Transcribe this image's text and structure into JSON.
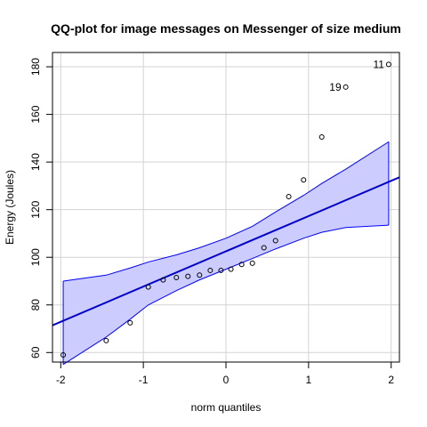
{
  "chart_data": {
    "type": "scatter",
    "title": "QQ-plot for image messages on Messenger of size medium",
    "xlabel": "norm quantiles",
    "ylabel": "Energy (Joules)",
    "xlim": [
      -2.1,
      2.1
    ],
    "ylim": [
      56,
      186
    ],
    "xticks": [
      -2,
      -1,
      0,
      1,
      2
    ],
    "yticks": [
      60,
      80,
      100,
      120,
      140,
      160,
      180
    ],
    "grid": true,
    "points": [
      {
        "x": -1.97,
        "y": 59.0
      },
      {
        "x": -1.45,
        "y": 65.0
      },
      {
        "x": -1.16,
        "y": 72.5
      },
      {
        "x": -0.94,
        "y": 87.5
      },
      {
        "x": -0.76,
        "y": 90.5
      },
      {
        "x": -0.6,
        "y": 91.5
      },
      {
        "x": -0.46,
        "y": 92.0
      },
      {
        "x": -0.32,
        "y": 92.5
      },
      {
        "x": -0.19,
        "y": 94.5
      },
      {
        "x": -0.06,
        "y": 94.5
      },
      {
        "x": 0.06,
        "y": 95.0
      },
      {
        "x": 0.19,
        "y": 97.0
      },
      {
        "x": 0.32,
        "y": 97.5
      },
      {
        "x": 0.46,
        "y": 104.0
      },
      {
        "x": 0.6,
        "y": 107.0
      },
      {
        "x": 0.76,
        "y": 125.5
      },
      {
        "x": 0.94,
        "y": 132.5
      },
      {
        "x": 1.16,
        "y": 150.5
      },
      {
        "x": 1.45,
        "y": 171.5
      },
      {
        "x": 1.97,
        "y": 181.0
      }
    ],
    "point_labels": [
      {
        "text": "19",
        "x": 1.45,
        "y": 171.5
      },
      {
        "text": "11",
        "x": 1.97,
        "y": 181.0
      }
    ],
    "fit_line": {
      "intercept": 102.5,
      "slope": 14.8,
      "color": "#0000cd"
    },
    "confidence_band": {
      "fill": "#ccccff",
      "stroke": "#0000ff",
      "upper": [
        {
          "x": -1.97,
          "y": 90.0
        },
        {
          "x": -1.45,
          "y": 92.5
        },
        {
          "x": -1.16,
          "y": 95.5
        },
        {
          "x": -0.94,
          "y": 98.0
        },
        {
          "x": -0.6,
          "y": 101.0
        },
        {
          "x": -0.32,
          "y": 104.0
        },
        {
          "x": 0.0,
          "y": 108.0
        },
        {
          "x": 0.32,
          "y": 113.0
        },
        {
          "x": 0.6,
          "y": 119.0
        },
        {
          "x": 0.94,
          "y": 126.0
        },
        {
          "x": 1.16,
          "y": 131.0
        },
        {
          "x": 1.45,
          "y": 137.0
        },
        {
          "x": 1.97,
          "y": 148.5
        }
      ],
      "lower": [
        {
          "x": -1.97,
          "y": 55.0
        },
        {
          "x": -1.45,
          "y": 66.5
        },
        {
          "x": -1.16,
          "y": 74.0
        },
        {
          "x": -0.94,
          "y": 80.0
        },
        {
          "x": -0.6,
          "y": 86.0
        },
        {
          "x": -0.32,
          "y": 90.5
        },
        {
          "x": 0.0,
          "y": 95.0
        },
        {
          "x": 0.32,
          "y": 99.5
        },
        {
          "x": 0.6,
          "y": 103.5
        },
        {
          "x": 0.94,
          "y": 108.0
        },
        {
          "x": 1.16,
          "y": 110.5
        },
        {
          "x": 1.45,
          "y": 112.5
        },
        {
          "x": 1.97,
          "y": 113.5
        }
      ]
    },
    "colors": {
      "grid": "#d3d3d3",
      "axis": "#000000",
      "point_stroke": "#000000"
    }
  }
}
